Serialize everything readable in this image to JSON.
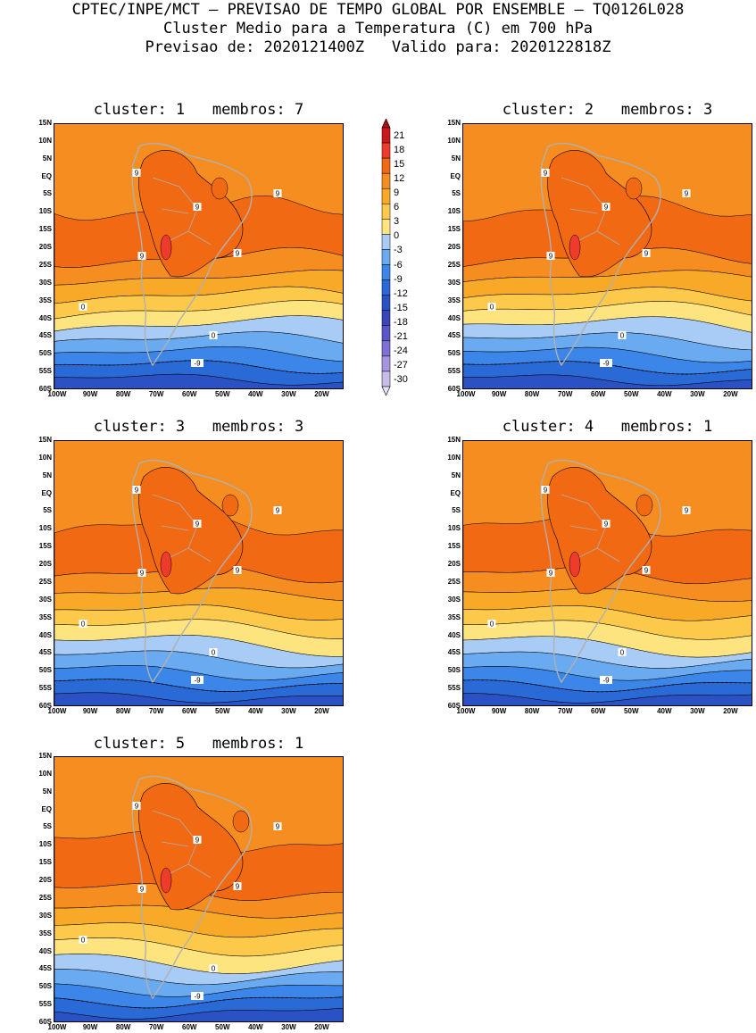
{
  "header": {
    "line1": "CPTEC/INPE/MCT – PREVISAO DE TEMPO GLOBAL POR ENSEMBLE – TQ0126L028",
    "line2": "Cluster Medio para a Temperatura (C) em 700 hPa",
    "line3": "Previsao de: 2020121400Z   Valido para: 2020122818Z"
  },
  "axes": {
    "lat_ticks": [
      "15N",
      "10N",
      "5N",
      "EQ",
      "5S",
      "10S",
      "15S",
      "20S",
      "25S",
      "30S",
      "35S",
      "40S",
      "45S",
      "50S",
      "55S",
      "60S"
    ],
    "lon_ticks": [
      "100W",
      "90W",
      "80W",
      "70W",
      "60W",
      "50W",
      "40W",
      "30W",
      "20W"
    ]
  },
  "colorbar": {
    "labels": [
      "21",
      "18",
      "15",
      "12",
      "9",
      "6",
      "3",
      "0",
      "-3",
      "-6",
      "-9",
      "-12",
      "-15",
      "-18",
      "-21",
      "-24",
      "-27",
      "-30"
    ],
    "colors": [
      "#a50f15",
      "#cb181d",
      "#ef3b2c",
      "#f16913",
      "#f58d20",
      "#f9a928",
      "#fcc94a",
      "#fde47f",
      "#a8ccf5",
      "#6aaaf0",
      "#3b86e8",
      "#2a6ad6",
      "#2a52c4",
      "#3a45b8",
      "#5a55c8",
      "#7f6fd6",
      "#a594e0",
      "#c8bdea",
      "#e6e0f4"
    ]
  },
  "panels": [
    {
      "title": "cluster: 1   membros: 7"
    },
    {
      "title": "cluster: 2   membros: 3"
    },
    {
      "title": "cluster: 3   membros: 3"
    },
    {
      "title": "cluster: 4   membros: 1"
    },
    {
      "title": "cluster: 5   membros: 1"
    }
  ],
  "contour_labels": {
    "nine": "9",
    "zero": "0",
    "minus_nine": "-9"
  },
  "theme": {
    "coast_color": "#b0b0b0",
    "band_warmest": "#f16913",
    "band_hot": "#ef3b2c"
  }
}
